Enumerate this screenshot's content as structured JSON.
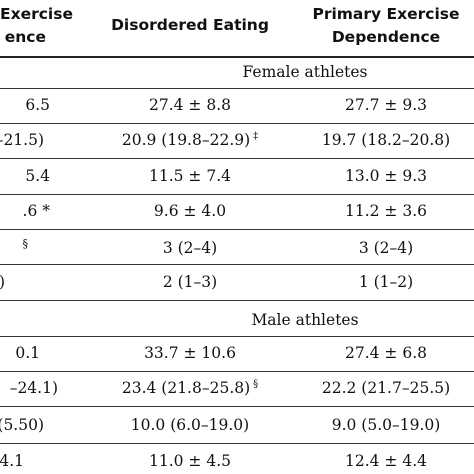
{
  "header": {
    "col1_line1": "Exercise",
    "col1_line2": "ence",
    "col2": "Disordered Eating",
    "col3_line1": "Primary Exercise",
    "col3_line2": "Dependence"
  },
  "sections": [
    {
      "label": "Female athletes",
      "rows": [
        {
          "c1": "6.5",
          "c2": "27.4 ± 8.8",
          "c2_mark": "",
          "c3": "27.7 ± 9.3",
          "c1_mark": ""
        },
        {
          "c1": "–21.5)",
          "c2": "20.9 (19.8–22.9)",
          "c2_mark": "‡",
          "c3": "19.7 (18.2–20.8)",
          "c1_mark": ""
        },
        {
          "c1": "5.4",
          "c2": "11.5 ± 7.4",
          "c2_mark": "",
          "c3": "13.0 ± 9.3",
          "c1_mark": ""
        },
        {
          "c1": ".6",
          "c2": "9.6 ± 4.0",
          "c2_mark": "",
          "c3": "11.2 ± 3.6",
          "c1_mark": "*"
        },
        {
          "c1": "",
          "c2": "3 (2–4)",
          "c2_mark": "",
          "c3": "3 (2–4)",
          "c1_mark": "§"
        },
        {
          "c1": ")",
          "c2": "2 (1–3)",
          "c2_mark": "",
          "c3": "1 (1–2)",
          "c1_mark": ""
        }
      ]
    },
    {
      "label": "Male athletes",
      "rows": [
        {
          "c1": "0.1",
          "c2": "33.7 ± 10.6",
          "c2_mark": "",
          "c3": "27.4 ± 6.8",
          "c1_mark": ""
        },
        {
          "c1": "–24.1)",
          "c2": "23.4 (21.8–25.8)",
          "c2_mark": "§",
          "c3": "22.2 (21.7–25.5)",
          "c1_mark": ""
        },
        {
          "c1": "(5.50)",
          "c2": "10.0 (6.0–19.0)",
          "c2_mark": "",
          "c3": "9.0 (5.0–19.0)",
          "c1_mark": ""
        },
        {
          "c1": "4.1",
          "c2": "11.0 ± 4.5",
          "c2_mark": "",
          "c3": "12.4 ± 4.4",
          "c1_mark": ""
        }
      ]
    }
  ]
}
